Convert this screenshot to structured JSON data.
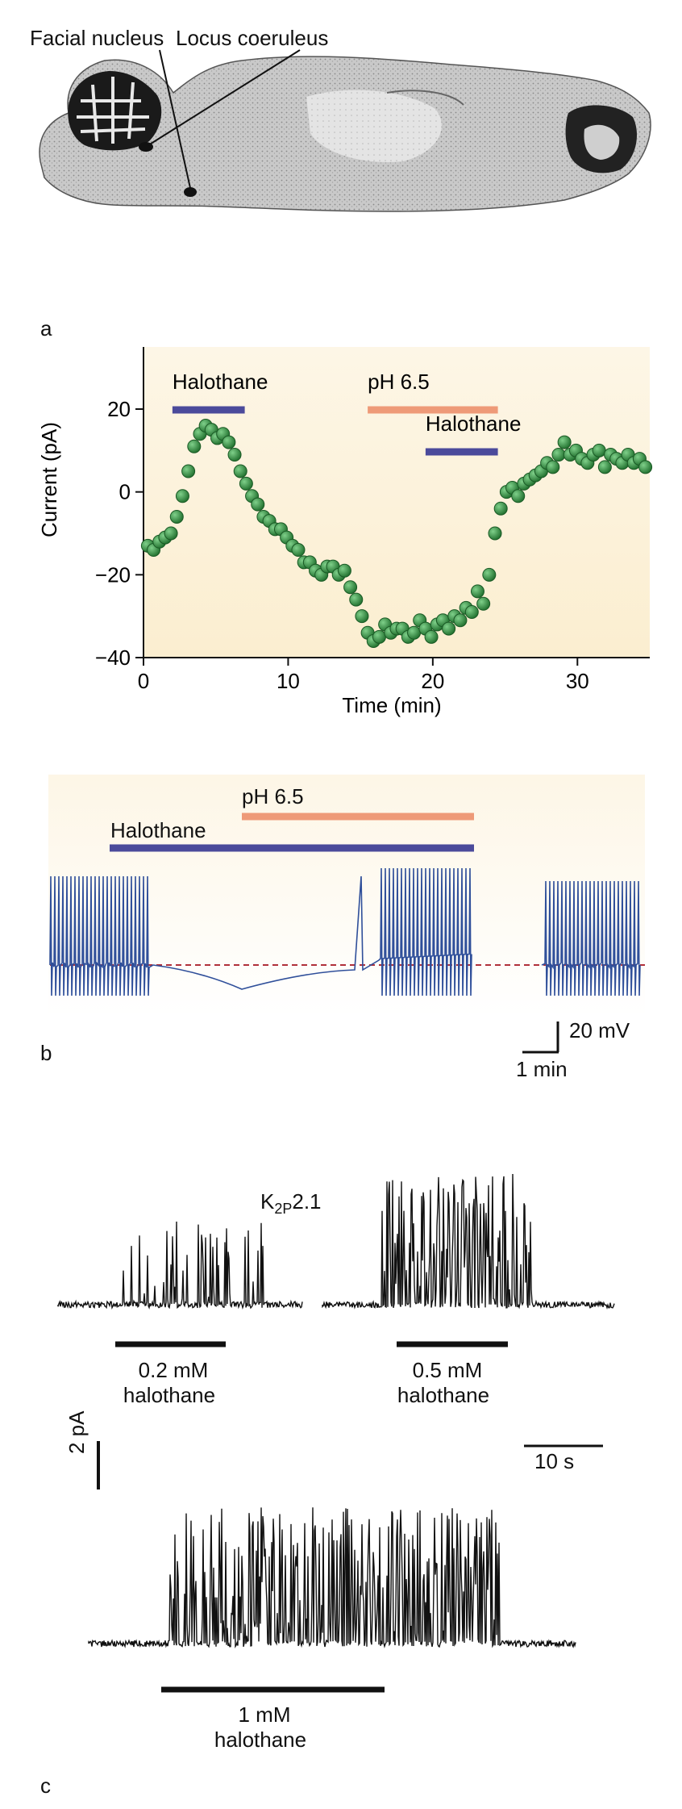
{
  "panel_a": {
    "letter": "a",
    "labels": {
      "facial_nucleus": "Facial nucleus",
      "locus_coeruleus": "Locus coeruleus"
    }
  },
  "panel_b": {
    "letter": "b",
    "scale_bar": {
      "voltage": "20 mV",
      "time": "1 min"
    },
    "trace_bars": {
      "halothane": "Halothane",
      "ph": "pH 6.5"
    }
  },
  "panel_c": {
    "letter": "c",
    "channel_label": {
      "main": "K",
      "sub": "2P",
      "suffix": "2.1"
    },
    "traces": [
      {
        "dose": "0.2 mM",
        "drug": "halothane"
      },
      {
        "dose": "0.5 mM",
        "drug": "halothane"
      },
      {
        "dose": "1 mM",
        "drug": "halothane"
      }
    ],
    "scale_bar": {
      "current": "2 pA",
      "time": "10 s"
    }
  },
  "colors": {
    "halothane_bar": "#4b4a9b",
    "ph_bar": "#ee9a78",
    "markers": "#2e8b3c",
    "trace_b": "#2f4f9a",
    "dash_line": "#b0303a"
  },
  "chart_data": {
    "type": "scatter",
    "title": "",
    "xlabel": "Time (min)",
    "ylabel": "Current (pA)",
    "xlim": [
      0,
      35
    ],
    "ylim": [
      -40,
      35
    ],
    "xticks": [
      0,
      10,
      20,
      30
    ],
    "yticks": [
      20,
      0,
      -20,
      -40
    ],
    "grid": false,
    "treatment_bars": [
      {
        "label": "Halothane",
        "start": 2,
        "end": 7,
        "color": "#4b4a9b"
      },
      {
        "label": "pH 6.5",
        "start": 15.5,
        "end": 24.5,
        "color": "#ee9a78"
      },
      {
        "label": "Halothane",
        "start": 19.5,
        "end": 24.5,
        "color": "#4b4a9b"
      }
    ],
    "series": [
      {
        "x": [
          0.3,
          0.7,
          1.1,
          1.5,
          1.9,
          2.3,
          2.7,
          3.1,
          3.5,
          3.9,
          4.3,
          4.7,
          5.1,
          5.5,
          5.9,
          6.3,
          6.7,
          7.1,
          7.5,
          7.9,
          8.3,
          8.7,
          9.1,
          9.5,
          9.9,
          10.3,
          10.7,
          11.1,
          11.5,
          11.9,
          12.3,
          12.7,
          13.1,
          13.5,
          13.9,
          14.3,
          14.7,
          15.1,
          15.5,
          15.9,
          16.3,
          16.7,
          17.1,
          17.5,
          17.9,
          18.3,
          18.7,
          19.1,
          19.5,
          19.9,
          20.3,
          20.7,
          21.1,
          21.5,
          21.9,
          22.3,
          22.7,
          23.1,
          23.5,
          23.9,
          24.3,
          24.7,
          25.1,
          25.5,
          25.9,
          26.3,
          26.7,
          27.1,
          27.5,
          27.9,
          28.3,
          28.7,
          29.1,
          29.5,
          29.9,
          30.3,
          30.7,
          31.1,
          31.5,
          31.9,
          32.3,
          32.7,
          33.1,
          33.5,
          33.9,
          34.3,
          34.7
        ],
        "y": [
          -13,
          -14,
          -12,
          -11,
          -10,
          -6,
          -1,
          5,
          11,
          14,
          16,
          15,
          13,
          14,
          12,
          9,
          5,
          2,
          -1,
          -3,
          -6,
          -7,
          -9,
          -9,
          -11,
          -13,
          -14,
          -17,
          -17,
          -19,
          -20,
          -18,
          -18,
          -20,
          -19,
          -23,
          -26,
          -30,
          -34,
          -36,
          -35,
          -32,
          -34,
          -33,
          -33,
          -35,
          -34,
          -31,
          -33,
          -35,
          -32,
          -31,
          -33,
          -30,
          -31,
          -28,
          -29,
          -24,
          -27,
          -20,
          -10,
          -4,
          0,
          1,
          -1,
          2,
          3,
          4,
          5,
          7,
          6,
          9,
          12,
          9,
          10,
          8,
          7,
          9,
          10,
          6,
          9,
          8,
          7,
          9,
          7,
          8,
          6
        ]
      }
    ]
  }
}
